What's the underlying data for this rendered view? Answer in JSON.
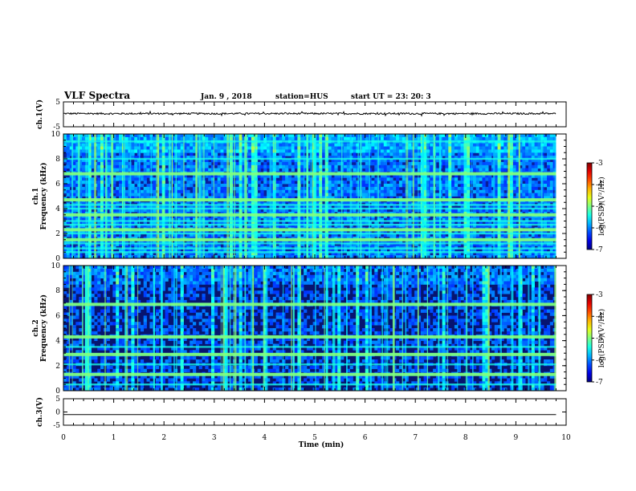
{
  "header": {
    "title": "VLF Spectra",
    "date": "Jan. 9 , 2018",
    "station": "station=HUS",
    "start": "start  UT =  23: 20: 3"
  },
  "chart_data": [
    {
      "type": "line",
      "id": "ch1-waveform",
      "ylabel": "ch.1(V)",
      "ylim": [
        -5,
        5
      ],
      "y_ticks": [
        "5",
        "-5"
      ],
      "xlim": [
        0,
        10
      ],
      "series": [
        {
          "level": 0.3,
          "noise_amplitude": 0.35,
          "x_end": 9.8
        }
      ]
    },
    {
      "type": "heatmap",
      "id": "ch1-spectrogram",
      "ylabel_line1": "ch.1",
      "ylabel_line2": "Frequency (kHz)",
      "ylim": [
        0,
        10
      ],
      "y_ticks": [
        "0",
        "2",
        "4",
        "6",
        "8",
        "10"
      ],
      "xlim": [
        0,
        9.8
      ],
      "colorbar": {
        "label": "log(PSD)(V²/Hz)",
        "ticks": [
          "-3",
          "-4",
          "-5",
          "-6",
          "-7"
        ],
        "range": [
          -7,
          -3
        ]
      },
      "lines_khz": [
        0.5,
        0.8,
        1.2,
        1.5,
        2.0,
        2.3,
        2.7,
        3.0,
        3.5,
        4.0,
        4.3,
        4.7,
        6.8,
        8.0,
        9.4
      ],
      "strong_lines_khz": [
        1.5,
        2.3,
        3.5,
        4.7,
        6.8
      ]
    },
    {
      "type": "heatmap",
      "id": "ch2-spectrogram",
      "ylabel_line1": "ch.2",
      "ylabel_line2": "Frequency (kHz)",
      "ylim": [
        0,
        10
      ],
      "y_ticks": [
        "0",
        "2",
        "4",
        "6",
        "8",
        "10"
      ],
      "xlim": [
        0,
        9.8
      ],
      "colorbar": {
        "label": "log(PSD)(V²/Hz)",
        "ticks": [
          "-3",
          "-4",
          "-5",
          "-6",
          "-7"
        ],
        "range": [
          -7,
          -3
        ]
      },
      "lines_khz": [
        0.5,
        1.3,
        2.1,
        2.9,
        3.5,
        4.3,
        6.9
      ],
      "strong_lines_khz": [
        1.3,
        2.9,
        4.3,
        6.9
      ]
    },
    {
      "type": "line",
      "id": "ch3-waveform",
      "ylabel": "ch.3(V)",
      "ylim": [
        -5,
        5
      ],
      "y_ticks": [
        "5",
        "0",
        "-5"
      ],
      "xlim": [
        0,
        10
      ],
      "xlabel": "Time (min)",
      "x_ticks": [
        "0",
        "1",
        "2",
        "3",
        "4",
        "5",
        "6",
        "7",
        "8",
        "9",
        "10"
      ],
      "series": [
        {
          "level": -1.0,
          "x_end": 9.8
        }
      ]
    }
  ]
}
